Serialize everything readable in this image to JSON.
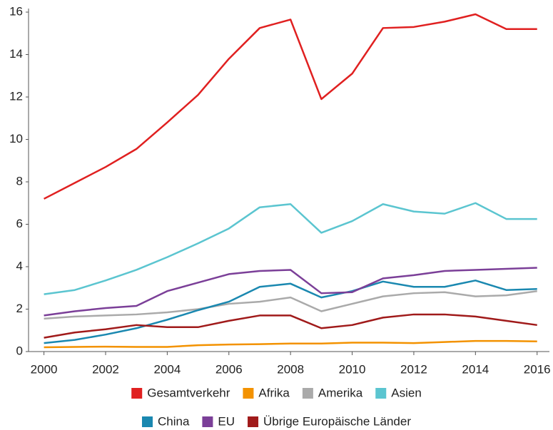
{
  "chart_data": {
    "type": "line",
    "x": [
      2000,
      2001,
      2002,
      2003,
      2004,
      2005,
      2006,
      2007,
      2008,
      2009,
      2010,
      2011,
      2012,
      2013,
      2014,
      2015,
      2016
    ],
    "series": [
      {
        "name": "Gesamtverkehr",
        "color": "#e02020",
        "values": [
          7.2,
          7.95,
          8.7,
          9.55,
          10.8,
          12.1,
          13.8,
          15.25,
          15.65,
          11.9,
          13.1,
          15.25,
          15.3,
          15.55,
          15.9,
          15.2,
          15.2
        ]
      },
      {
        "name": "Afrika",
        "color": "#f39200",
        "values": [
          0.2,
          0.22,
          0.23,
          0.22,
          0.22,
          0.3,
          0.33,
          0.35,
          0.38,
          0.38,
          0.42,
          0.42,
          0.4,
          0.45,
          0.5,
          0.5,
          0.48
        ]
      },
      {
        "name": "Amerika",
        "color": "#aaaaaa",
        "values": [
          1.55,
          1.65,
          1.7,
          1.75,
          1.85,
          2.0,
          2.25,
          2.35,
          2.55,
          1.9,
          2.25,
          2.6,
          2.75,
          2.8,
          2.6,
          2.65,
          2.85
        ]
      },
      {
        "name": "Asien",
        "color": "#5bc5d0",
        "values": [
          2.7,
          2.9,
          3.35,
          3.85,
          4.45,
          5.1,
          5.8,
          6.8,
          6.95,
          5.6,
          6.15,
          6.95,
          6.6,
          6.5,
          7.0,
          6.25,
          6.25
        ]
      },
      {
        "name": "China",
        "color": "#1a88b0",
        "values": [
          0.4,
          0.55,
          0.8,
          1.1,
          1.5,
          1.95,
          2.35,
          3.05,
          3.2,
          2.55,
          2.85,
          3.3,
          3.05,
          3.05,
          3.35,
          2.9,
          2.95
        ]
      },
      {
        "name": "EU",
        "color": "#7b3f98",
        "values": [
          1.7,
          1.9,
          2.05,
          2.15,
          2.85,
          3.25,
          3.65,
          3.8,
          3.85,
          2.75,
          2.8,
          3.45,
          3.6,
          3.8,
          3.85,
          3.9,
          3.95
        ]
      },
      {
        "name": "Übrige Europäische Länder",
        "color": "#a01a1a",
        "values": [
          0.65,
          0.9,
          1.05,
          1.25,
          1.15,
          1.15,
          1.45,
          1.7,
          1.7,
          1.1,
          1.25,
          1.6,
          1.75,
          1.75,
          1.65,
          1.45,
          1.25
        ]
      }
    ],
    "xlim": [
      1999.5,
      2016.4
    ],
    "xticks": [
      2000,
      2002,
      2004,
      2006,
      2008,
      2010,
      2012,
      2014,
      2016
    ],
    "ylim": [
      0,
      16
    ],
    "yticks": [
      0,
      2,
      4,
      6,
      8,
      10,
      12,
      14,
      16
    ],
    "grid": false,
    "legend": "bottom"
  }
}
